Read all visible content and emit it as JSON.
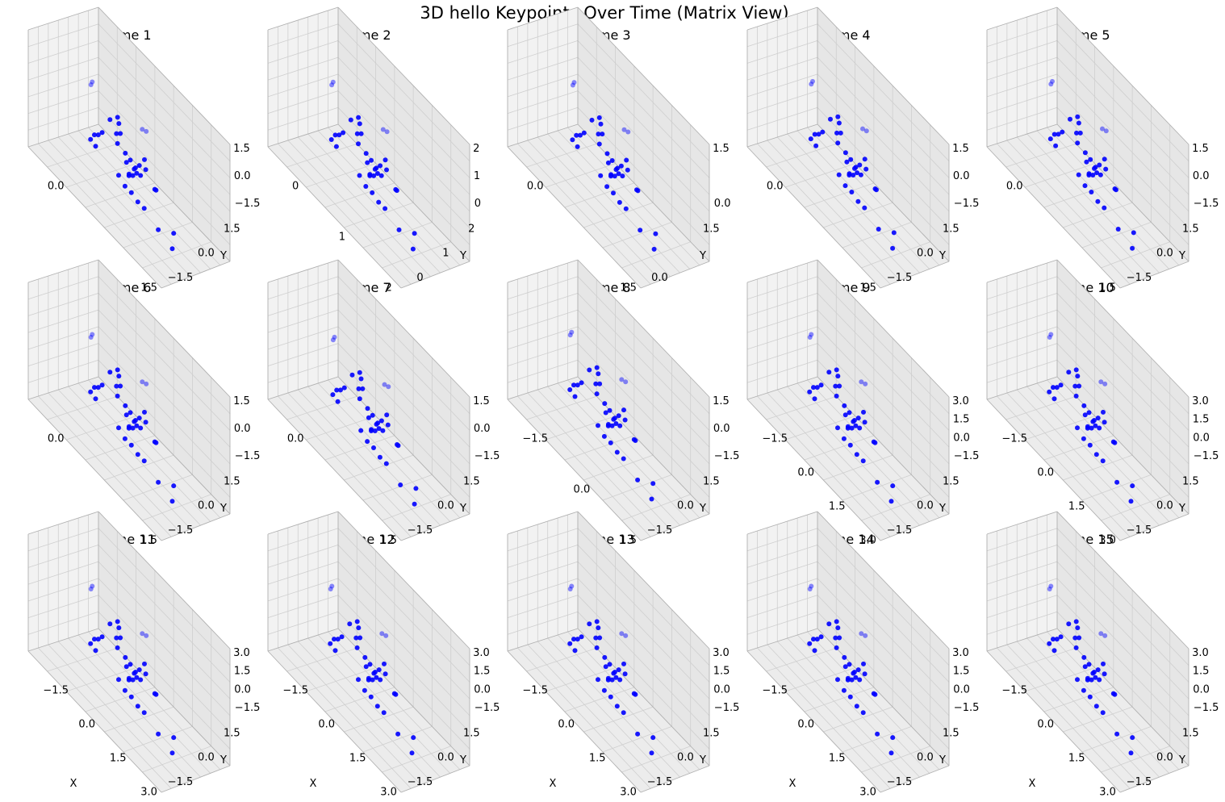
{
  "title": "3D hello Keypoints Over Time (Matrix View)",
  "colors": {
    "marker": "#0000ff",
    "pane_left": "#f2f2f2",
    "pane_right": "#e6e6e6",
    "pane_floor": "#ececec",
    "grid": "#cfcfcf",
    "edge": "#b0b0b0"
  },
  "chart_data": {
    "type": "scatter",
    "layout": "3 rows x 5 columns of 3D scatter plots",
    "xlabel": "X",
    "ylabel": "Y",
    "zlabel": "",
    "grid": true,
    "keypoints": [
      [
        -1.2,
        1.2,
        1.0
      ],
      [
        -1.2,
        1.3,
        1.1
      ],
      [
        -0.3,
        0.9,
        0.6
      ],
      [
        -0.1,
        1.0,
        0.2
      ],
      [
        0.0,
        1.1,
        0.3
      ],
      [
        0.2,
        0.5,
        1.4
      ],
      [
        0.2,
        0.6,
        1.1
      ],
      [
        0.3,
        0.3,
        0.4
      ],
      [
        0.4,
        0.7,
        0.0
      ],
      [
        -0.4,
        0.5,
        0.0
      ],
      [
        -0.5,
        0.4,
        -0.2
      ],
      [
        -0.6,
        0.3,
        -0.3
      ],
      [
        0.6,
        0.4,
        -0.1
      ],
      [
        0.7,
        0.5,
        0.1
      ],
      [
        0.8,
        0.6,
        -0.2
      ],
      [
        0.9,
        0.5,
        0.0
      ],
      [
        1.0,
        0.4,
        -0.1
      ],
      [
        1.0,
        0.6,
        0.2
      ],
      [
        1.1,
        0.5,
        -0.1
      ],
      [
        0.9,
        0.3,
        -0.3
      ],
      [
        0.8,
        0.2,
        -0.4
      ],
      [
        1.2,
        0.6,
        0.7
      ],
      [
        1.3,
        0.5,
        0.4
      ],
      [
        1.5,
        0.8,
        -0.3
      ],
      [
        1.6,
        0.7,
        -0.2
      ],
      [
        0.6,
        1.6,
        1.1
      ],
      [
        0.7,
        1.7,
        1.1
      ],
      [
        0.5,
        0.0,
        -0.7
      ],
      [
        0.8,
        -0.1,
        -0.8
      ],
      [
        1.1,
        -0.2,
        -0.7
      ],
      [
        1.3,
        -0.1,
        -0.9
      ],
      [
        1.6,
        -0.2,
        -0.8
      ],
      [
        2.2,
        -0.3,
        -1.0
      ],
      [
        2.7,
        -0.1,
        -0.6
      ],
      [
        2.8,
        -0.4,
        -1.1
      ],
      [
        -0.7,
        0.2,
        -0.6
      ],
      [
        -0.4,
        0.0,
        -0.5
      ],
      [
        0.7,
        0.4,
        -0.5
      ]
    ],
    "panels": [
      {
        "title": "Frame 1",
        "x_ticks": [
          "0.0",
          "1.5"
        ],
        "y_ticks": [
          "−1.5",
          "0.0",
          "1.5"
        ],
        "z_ticks": [
          "−1.5",
          "0.0",
          "1.5"
        ],
        "dx": 0,
        "dy": 0,
        "dz": 0
      },
      {
        "title": "Frame 2",
        "x_ticks": [
          "0",
          "1",
          "2"
        ],
        "y_ticks": [
          "0",
          "1",
          "2"
        ],
        "z_ticks": [
          "0",
          "1",
          "2"
        ],
        "dx": 0.2,
        "dy": -0.3,
        "dz": 0.3
      },
      {
        "title": "Frame 3",
        "x_ticks": [
          "0.0",
          "1.5"
        ],
        "y_ticks": [
          "0.0",
          "1.5"
        ],
        "z_ticks": [
          "0.0",
          "1.5"
        ],
        "dx": 0.1,
        "dy": 0,
        "dz": 0.1
      },
      {
        "title": "Frame 4",
        "x_ticks": [
          "0.0",
          "1.5"
        ],
        "y_ticks": [
          "−1.5",
          "0.0",
          "1.5"
        ],
        "z_ticks": [
          "−1.5",
          "0.0",
          "1.5"
        ],
        "dx": 0,
        "dy": 0.1,
        "dz": 0
      },
      {
        "title": "Frame 5",
        "x_ticks": [
          "0.0",
          "1.5"
        ],
        "y_ticks": [
          "−1.5",
          "0.0",
          "1.5"
        ],
        "z_ticks": [
          "−1.5",
          "0.0",
          "1.5"
        ],
        "dx": 0,
        "dy": 0.1,
        "dz": 0
      },
      {
        "title": "Frame 6",
        "x_ticks": [
          "0.0",
          "1.5"
        ],
        "y_ticks": [
          "−1.5",
          "0.0",
          "1.5"
        ],
        "z_ticks": [
          "−1.5",
          "0.0",
          "1.5"
        ],
        "dx": 0,
        "dy": 0,
        "dz": 0
      },
      {
        "title": "Frame 7",
        "x_ticks": [
          "0.0",
          "1.5"
        ],
        "y_ticks": [
          "−1.5",
          "0.0",
          "1.5"
        ],
        "z_ticks": [
          "−1.5",
          "0.0",
          "1.5"
        ],
        "dx": 0.1,
        "dy": 0,
        "dz": 0
      },
      {
        "title": "Frame 8",
        "x_ticks": [
          "−1.5",
          "0.0",
          "1.5"
        ],
        "y_ticks": [
          "−1.5",
          "0.0",
          "1.5"
        ],
        "z_ticks": [
          "−1.5",
          "0.0",
          "1.5"
        ],
        "dx": 0,
        "dy": 0,
        "dz": 0.1
      },
      {
        "title": "Frame 9",
        "x_ticks": [
          "−1.5",
          "0.0",
          "1.5",
          "3.0"
        ],
        "y_ticks": [
          "−1.5",
          "0.0",
          "1.5"
        ],
        "z_ticks": [
          "−1.5",
          "0.0",
          "1.5",
          "3.0"
        ],
        "dx": 0,
        "dy": 0,
        "dz": 0
      },
      {
        "title": "Frame 10",
        "x_ticks": [
          "−1.5",
          "0.0",
          "1.5",
          "3.0"
        ],
        "y_ticks": [
          "−1.5",
          "0.0",
          "1.5"
        ],
        "z_ticks": [
          "−1.5",
          "0.0",
          "1.5",
          "3.0"
        ],
        "dx": 0,
        "dy": 0,
        "dz": 0
      },
      {
        "title": "Frame 11",
        "x_ticks": [
          "−1.5",
          "0.0",
          "1.5",
          "3.0"
        ],
        "y_ticks": [
          "−1.5",
          "0.0",
          "1.5"
        ],
        "z_ticks": [
          "−1.5",
          "0.0",
          "1.5",
          "3.0"
        ],
        "dx": 0,
        "dy": 0,
        "dz": 0
      },
      {
        "title": "Frame 12",
        "x_ticks": [
          "−1.5",
          "0.0",
          "1.5",
          "3.0"
        ],
        "y_ticks": [
          "−1.5",
          "0.0",
          "1.5"
        ],
        "z_ticks": [
          "−1.5",
          "0.0",
          "1.5",
          "3.0"
        ],
        "dx": 0,
        "dy": 0,
        "dz": 0
      },
      {
        "title": "Frame 13",
        "x_ticks": [
          "−1.5",
          "0.0",
          "1.5",
          "3.0"
        ],
        "y_ticks": [
          "−1.5",
          "0.0",
          "1.5"
        ],
        "z_ticks": [
          "−1.5",
          "0.0",
          "1.5",
          "3.0"
        ],
        "dx": 0,
        "dy": 0,
        "dz": 0
      },
      {
        "title": "Frame 14",
        "x_ticks": [
          "−1.5",
          "0.0",
          "1.5",
          "3.0"
        ],
        "y_ticks": [
          "−1.5",
          "0.0",
          "1.5"
        ],
        "z_ticks": [
          "−1.5",
          "0.0",
          "1.5",
          "3.0"
        ],
        "dx": 0,
        "dy": 0,
        "dz": 0
      },
      {
        "title": "Frame 15",
        "x_ticks": [
          "−1.5",
          "0.0",
          "1.5",
          "3.0"
        ],
        "y_ticks": [
          "−1.5",
          "0.0",
          "1.5"
        ],
        "z_ticks": [
          "−1.5",
          "0.0",
          "1.5",
          "3.0"
        ],
        "dx": 0,
        "dy": 0,
        "dz": 0
      }
    ]
  }
}
